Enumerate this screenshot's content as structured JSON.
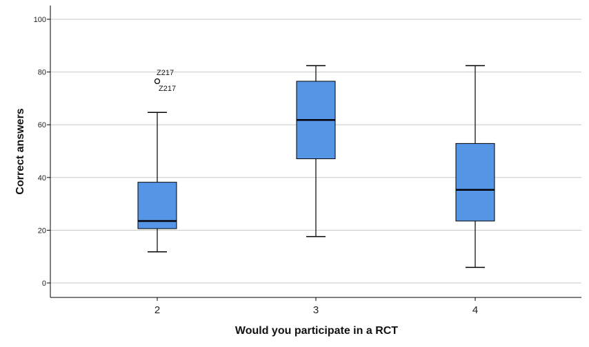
{
  "chart_data": {
    "type": "boxplot",
    "xlabel": "Would you participate in a RCT",
    "ylabel": "Correct answers",
    "ylim": [
      -5,
      105
    ],
    "yticks": [
      0,
      20,
      40,
      60,
      80,
      100
    ],
    "grid": true,
    "colors": {
      "box_fill": "#5495e6",
      "grid": "#c8c8c8",
      "stroke": "#000000"
    },
    "categories": [
      "2",
      "3",
      "4"
    ],
    "boxes": [
      {
        "category": "2",
        "whisker_low": 11.8,
        "q1": 20.6,
        "median": 23.5,
        "q3": 38.2,
        "whisker_high": 64.7,
        "outliers": [
          {
            "value": 76.5,
            "labels": [
              "Z217",
              "Z217"
            ]
          }
        ]
      },
      {
        "category": "3",
        "whisker_low": 17.6,
        "q1": 47.1,
        "median": 61.8,
        "q3": 76.5,
        "whisker_high": 82.4,
        "outliers": []
      },
      {
        "category": "4",
        "whisker_low": 5.9,
        "q1": 23.5,
        "median": 35.3,
        "q3": 52.9,
        "whisker_high": 82.4,
        "outliers": []
      }
    ]
  }
}
